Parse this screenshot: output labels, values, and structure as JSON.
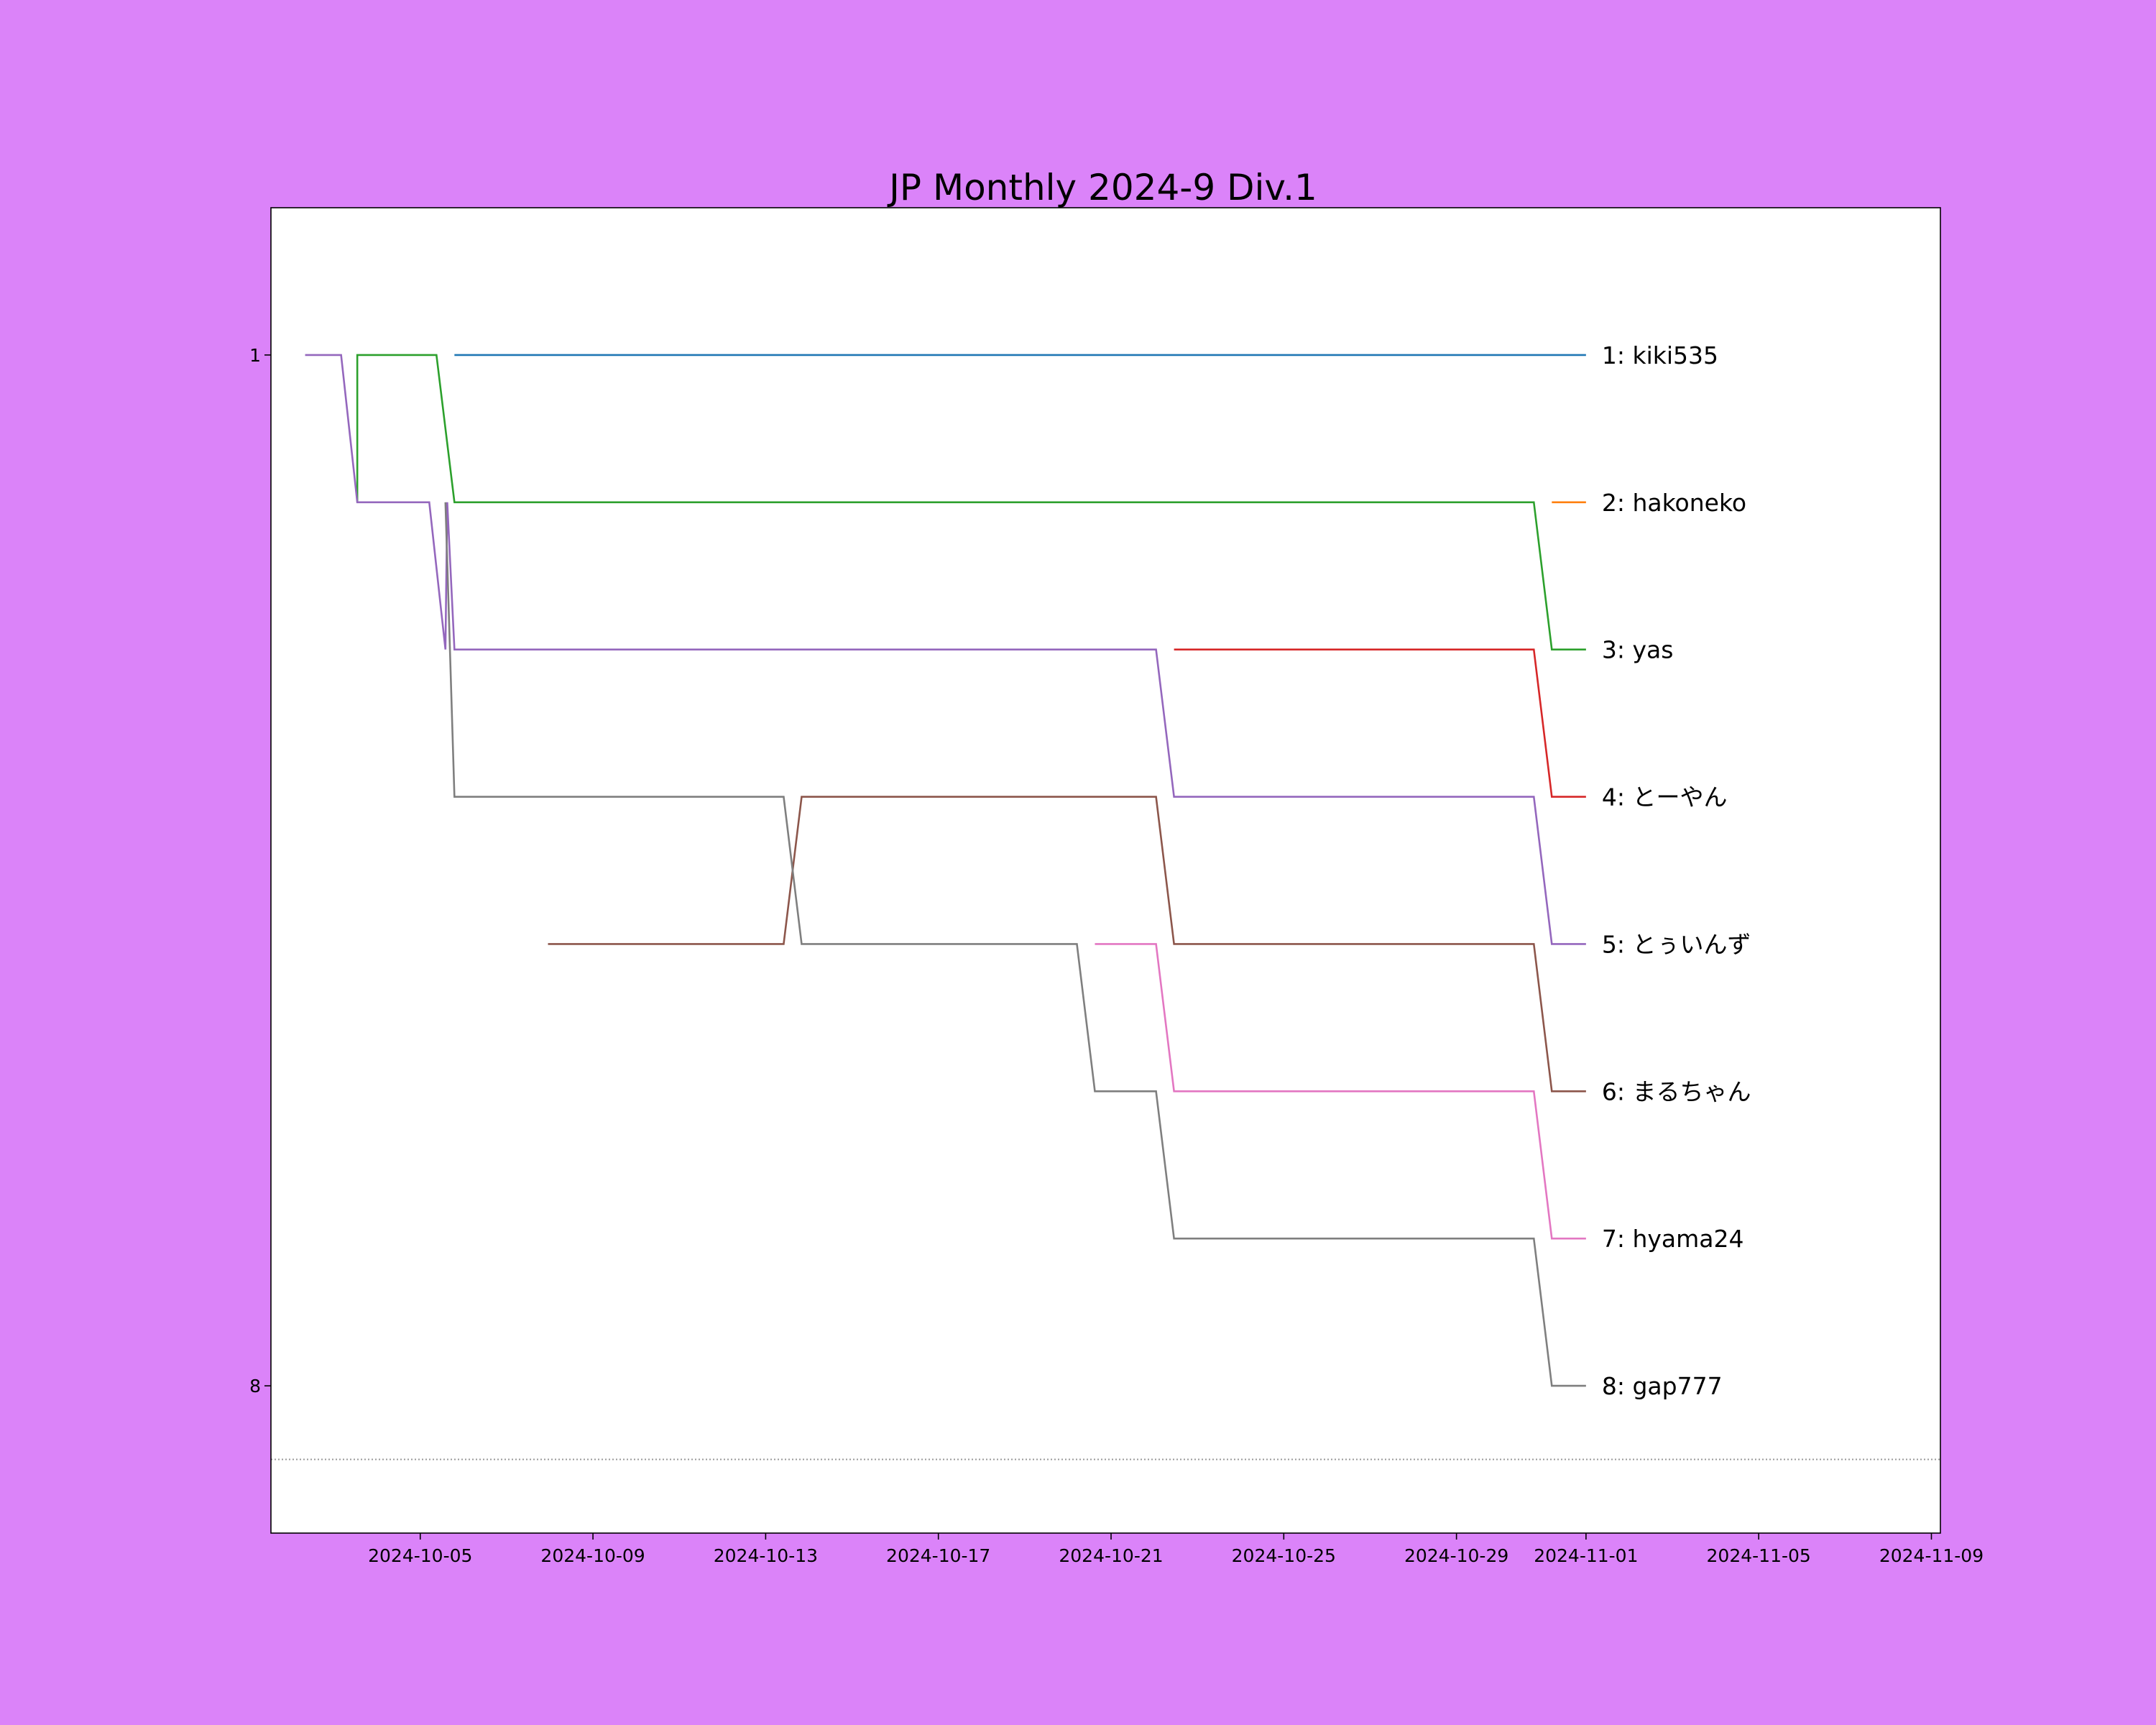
{
  "chart_data": {
    "type": "line",
    "title": "JP Monthly 2024-9 Div.1",
    "xlim": [
      "2024-10-01T13:00",
      "2024-11-09T05:00"
    ],
    "xticks": [
      "2024-10-05",
      "2024-10-09",
      "2024-10-13",
      "2024-10-17",
      "2024-10-21",
      "2024-10-25",
      "2024-10-29",
      "2024-11-01",
      "2024-11-05",
      "2024-11-09"
    ],
    "ylim": [
      9,
      0
    ],
    "yticks": [
      1,
      8
    ],
    "hline": 8.5,
    "end_labels": true,
    "series": [
      {
        "name": "1: kiki535",
        "color": "#1f77b4",
        "x": [
          "2024-10-05T19:00",
          "2024-11-01T00:00"
        ],
        "values": [
          1,
          1
        ]
      },
      {
        "name": "2: hakoneko",
        "color": "#ff7f0e",
        "x": [
          "2024-10-31T05:00",
          "2024-11-01T00:00"
        ],
        "values": [
          2,
          2
        ]
      },
      {
        "name": "3: yas",
        "color": "#2ca02c",
        "x": [
          "2024-10-03T13:00",
          "2024-10-03T13:00",
          "2024-10-05T09:00",
          "2024-10-05T19:00",
          "2024-10-30T19:00",
          "2024-10-31T05:00",
          "2024-11-01T00:00"
        ],
        "values": [
          2,
          1,
          1,
          2,
          2,
          3,
          3
        ]
      },
      {
        "name": "4: とーやん",
        "color": "#d62728",
        "x": [
          "2024-10-22T11:00",
          "2024-10-30T19:00",
          "2024-10-31T05:00",
          "2024-11-01T00:00"
        ],
        "values": [
          3,
          3,
          4,
          4
        ]
      },
      {
        "name": "5: とぅいんず",
        "color": "#9467bd",
        "x": [
          "2024-10-02T08:00",
          "2024-10-03T04:00",
          "2024-10-03T13:00",
          "2024-10-05T05:00",
          "2024-10-05T14:00",
          "2024-10-05T15:00",
          "2024-10-05T19:00",
          "2024-10-22T01:00",
          "2024-10-22T11:00",
          "2024-10-30T19:00",
          "2024-10-31T05:00",
          "2024-11-01T00:00"
        ],
        "values": [
          1,
          1,
          2,
          2,
          3,
          2,
          3,
          3,
          4,
          4,
          5,
          5
        ]
      },
      {
        "name": "6: まるちゃん",
        "color": "#8c564b",
        "x": [
          "2024-10-07T23:00",
          "2024-10-13T10:00",
          "2024-10-13T20:00",
          "2024-10-22T01:00",
          "2024-10-22T11:00",
          "2024-10-30T19:00",
          "2024-10-31T05:00",
          "2024-11-01T00:00"
        ],
        "values": [
          5,
          5,
          4,
          4,
          5,
          5,
          6,
          6
        ]
      },
      {
        "name": "7: hyama24",
        "color": "#e377c2",
        "x": [
          "2024-10-20T15:00",
          "2024-10-22T01:00",
          "2024-10-22T11:00",
          "2024-10-30T19:00",
          "2024-10-31T05:00",
          "2024-11-01T00:00"
        ],
        "values": [
          5,
          5,
          6,
          6,
          7,
          7
        ]
      },
      {
        "name": "8: gap777",
        "color": "#7f7f7f",
        "x": [
          "2024-10-05T14:00",
          "2024-10-05T19:00",
          "2024-10-13T10:00",
          "2024-10-13T20:00",
          "2024-10-20T05:00",
          "2024-10-20T15:00",
          "2024-10-22T01:00",
          "2024-10-22T11:00",
          "2024-10-30T19:00",
          "2024-10-31T05:00",
          "2024-11-01T00:00"
        ],
        "values": [
          2,
          4,
          4,
          5,
          5,
          6,
          6,
          7,
          7,
          8,
          8
        ]
      }
    ]
  }
}
